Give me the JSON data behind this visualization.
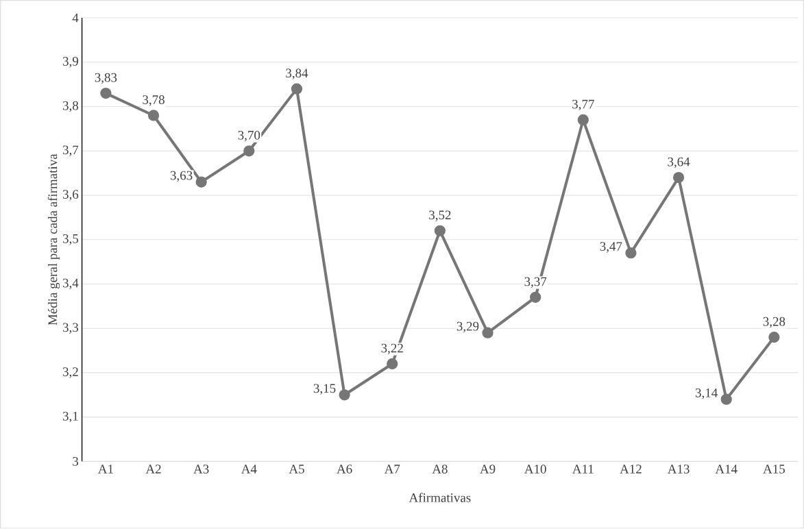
{
  "chart_data": {
    "type": "line",
    "xlabel": "Afirmativas",
    "ylabel": "Média geral para cada afirmativa",
    "categories": [
      "A1",
      "A2",
      "A3",
      "A4",
      "A5",
      "A6",
      "A7",
      "A8",
      "A9",
      "A10",
      "A11",
      "A12",
      "A13",
      "A14",
      "A15"
    ],
    "series": [
      {
        "color": "#767676",
        "values": [
          3.83,
          3.78,
          3.63,
          3.7,
          3.84,
          3.15,
          3.22,
          3.52,
          3.29,
          3.37,
          3.77,
          3.47,
          3.64,
          3.14,
          3.28
        ],
        "value_labels": [
          "3,83",
          "3,78",
          "3,63",
          "3,70",
          "3,84",
          "3,15",
          "3,22",
          "3,52",
          "3,29",
          "3,37",
          "3,77",
          "3,47",
          "3,64",
          "3,14",
          "3,28"
        ]
      }
    ],
    "ylim": [
      3,
      4
    ],
    "yticks": [
      3,
      {
        "value": 3.1,
        "label": "3,1"
      },
      {
        "value": 3.2,
        "label": "3,2"
      },
      {
        "value": 3.3,
        "label": "3,3"
      },
      {
        "value": 3.4,
        "label": "3,4"
      },
      {
        "value": 3.5,
        "label": "3,5"
      },
      {
        "value": 3.6,
        "label": "3,6"
      },
      {
        "value": 3.7,
        "label": "3,7"
      },
      {
        "value": 3.8,
        "label": "3,8"
      },
      {
        "value": 3.9,
        "label": "3,9"
      },
      4
    ],
    "grid": "y",
    "marker": "circle",
    "line_style": "solid"
  }
}
